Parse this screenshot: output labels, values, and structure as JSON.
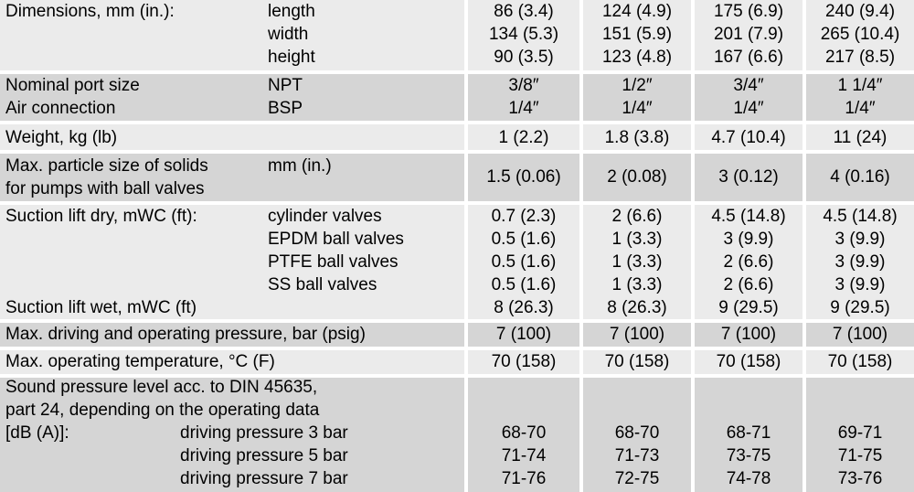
{
  "dimensions": {
    "label": "Dimensions, mm (in.):",
    "subs": [
      "length",
      "width",
      "height"
    ],
    "values": [
      [
        "86 (3.4)",
        "124 (4.9)",
        "175 (6.9)",
        "240 (9.4)"
      ],
      [
        "134 (5.3)",
        "151 (5.9)",
        "201 (7.9)",
        "265 (10.4)"
      ],
      [
        "90 (3.5)",
        "123 (4.8)",
        "167 (6.6)",
        "217 (8.5)"
      ]
    ]
  },
  "ports": {
    "label1": "Nominal port size",
    "label2": "Air connection",
    "sub1": "NPT",
    "sub2": "BSP",
    "values": [
      [
        "3/8″",
        "1/2″",
        "3/4″",
        "1 1/4″"
      ],
      [
        "1/4″",
        "1/4″",
        "1/4″",
        "1/4″"
      ]
    ]
  },
  "weight": {
    "label": "Weight, kg (lb)",
    "values": [
      "1 (2.2)",
      "1.8 (3.8)",
      "4.7 (10.4)",
      "11 (24)"
    ]
  },
  "particle": {
    "label1": "Max. particle size of solids",
    "label2": "for pumps with ball valves",
    "sub": "mm (in.)",
    "values": [
      "1.5 (0.06)",
      "2 (0.08)",
      "3 (0.12)",
      "4 (0.16)"
    ]
  },
  "suction": {
    "label_dry": "Suction lift dry, mWC (ft):",
    "subs": [
      "cylinder valves",
      "EPDM ball valves",
      "PTFE ball valves",
      "SS ball valves"
    ],
    "values": [
      [
        "0.7 (2.3)",
        "2 (6.6)",
        "4.5 (14.8)",
        "4.5 (14.8)"
      ],
      [
        "0.5 (1.6)",
        "1 (3.3)",
        "3 (9.9)",
        "3 (9.9)"
      ],
      [
        "0.5 (1.6)",
        "1 (3.3)",
        "2 (6.6)",
        "3 (9.9)"
      ],
      [
        "0.5 (1.6)",
        "1 (3.3)",
        "2 (6.6)",
        "3 (9.9)"
      ]
    ],
    "label_wet": "Suction lift wet, mWC (ft)",
    "wet_values": [
      "8 (26.3)",
      "8 (26.3)",
      "9 (29.5)",
      "9 (29.5)"
    ]
  },
  "pressure": {
    "label": "Max. driving and operating pressure, bar (psig)",
    "values": [
      "7 (100)",
      "7 (100)",
      "7 (100)",
      "7 (100)"
    ]
  },
  "temperature": {
    "label": "Max. operating temperature, °C (F)",
    "values": [
      "70 (158)",
      "70 (158)",
      "70 (158)",
      "70 (158)"
    ]
  },
  "sound": {
    "lines": [
      "Sound pressure level acc. to DIN 45635,",
      "part 24, depending on the operating data",
      "[dB (A)]:"
    ],
    "subs": [
      "driving pressure 3 bar",
      "driving pressure 5 bar",
      "driving pressure 7 bar"
    ],
    "values": [
      [
        "68-70",
        "68-70",
        "68-71",
        "69-71"
      ],
      [
        "71-74",
        "71-73",
        "73-75",
        "71-75"
      ],
      [
        "71-76",
        "72-75",
        "74-78",
        "73-76"
      ]
    ]
  }
}
